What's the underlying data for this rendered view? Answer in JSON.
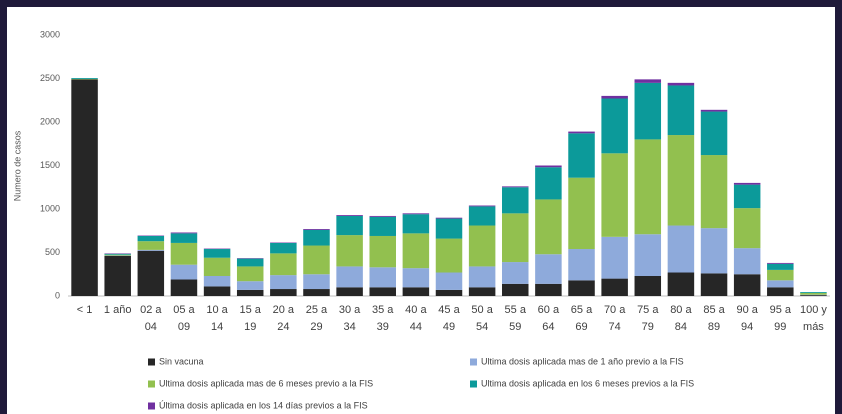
{
  "chart_data": {
    "type": "stacked_bar",
    "y_label": "Numero de casos",
    "categories": [
      "< 1",
      "1 año",
      "02 a 04",
      "05 a 09",
      "10 a 14",
      "15 a 19",
      "20 a 24",
      "25 a 29",
      "30 a 34",
      "35 a 39",
      "40 a 44",
      "45 a 49",
      "50 a 54",
      "55 a 59",
      "60 a 64",
      "65 a 69",
      "70 a 74",
      "75 a 79",
      "80 a 84",
      "85 a 89",
      "90 a 94",
      "95 a 99",
      "100 y más"
    ],
    "series": [
      {
        "name": "Sin vacuna",
        "color": "#262626",
        "values": [
          2490,
          460,
          520,
          190,
          110,
          70,
          80,
          80,
          100,
          100,
          100,
          70,
          100,
          140,
          140,
          180,
          200,
          230,
          270,
          260,
          250,
          100,
          10
        ]
      },
      {
        "name": "Ultima dosis aplicada mas de 1 año previo a la FIS",
        "color": "#8eaadb",
        "values": [
          0,
          5,
          10,
          170,
          120,
          100,
          160,
          170,
          240,
          230,
          220,
          200,
          240,
          250,
          340,
          360,
          480,
          480,
          540,
          520,
          300,
          80,
          5
        ]
      },
      {
        "name": "Ultima dosis aplicada mas de 6 meses previo a la FIS",
        "color": "#92c04f",
        "values": [
          5,
          10,
          100,
          250,
          210,
          170,
          250,
          330,
          360,
          360,
          400,
          390,
          470,
          560,
          630,
          820,
          960,
          1090,
          1040,
          840,
          460,
          120,
          20
        ]
      },
      {
        "name": "Ultima dosis aplicada en los 6 meses previos a la FIS",
        "color": "#0c9a9a",
        "values": [
          10,
          10,
          60,
          110,
          100,
          90,
          120,
          180,
          220,
          220,
          220,
          230,
          220,
          300,
          370,
          510,
          630,
          650,
          570,
          500,
          270,
          70,
          10
        ]
      },
      {
        "name": "Última dosis aplicada en los 14 días previos a la FIS",
        "color": "#7030a0",
        "values": [
          0,
          5,
          5,
          10,
          5,
          5,
          5,
          10,
          10,
          10,
          10,
          10,
          10,
          10,
          20,
          20,
          30,
          40,
          30,
          20,
          20,
          10,
          0
        ]
      }
    ],
    "ylim": [
      0,
      3000
    ],
    "yticks": [
      0,
      500,
      1000,
      1500,
      2000,
      2500,
      3000
    ],
    "grid": false
  }
}
